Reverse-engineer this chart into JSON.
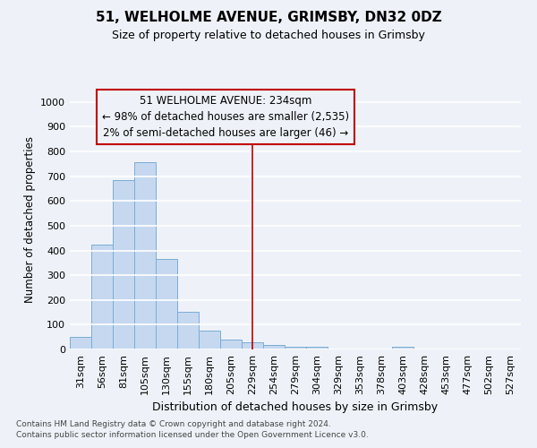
{
  "title1": "51, WELHOLME AVENUE, GRIMSBY, DN32 0DZ",
  "title2": "Size of property relative to detached houses in Grimsby",
  "xlabel": "Distribution of detached houses by size in Grimsby",
  "ylabel": "Number of detached properties",
  "categories": [
    "31sqm",
    "56sqm",
    "81sqm",
    "105sqm",
    "130sqm",
    "155sqm",
    "180sqm",
    "205sqm",
    "229sqm",
    "254sqm",
    "279sqm",
    "304sqm",
    "329sqm",
    "353sqm",
    "378sqm",
    "403sqm",
    "428sqm",
    "453sqm",
    "477sqm",
    "502sqm",
    "527sqm"
  ],
  "values": [
    52,
    425,
    685,
    757,
    365,
    153,
    75,
    40,
    30,
    18,
    12,
    10,
    0,
    0,
    0,
    10,
    0,
    0,
    0,
    0,
    0
  ],
  "bar_color": "#c5d8f0",
  "bar_edge_color": "#7aadd4",
  "vline_x_idx": 8,
  "vline_color": "#c00000",
  "annotation_line1": "51 WELHOLME AVENUE: 234sqm",
  "annotation_line2": "← 98% of detached houses are smaller (2,535)",
  "annotation_line3": "2% of semi-detached houses are larger (46) →",
  "annotation_box_color": "#c00000",
  "ylim": [
    0,
    1050
  ],
  "yticks": [
    0,
    100,
    200,
    300,
    400,
    500,
    600,
    700,
    800,
    900,
    1000
  ],
  "footer1": "Contains HM Land Registry data © Crown copyright and database right 2024.",
  "footer2": "Contains public sector information licensed under the Open Government Licence v3.0.",
  "bg_color": "#eef2f8",
  "plot_bg_color": "#eef2f8",
  "grid_color": "#ffffff",
  "title1_fontsize": 11,
  "title2_fontsize": 9,
  "xlabel_fontsize": 9,
  "ylabel_fontsize": 8.5,
  "tick_fontsize": 8,
  "annotation_fontsize": 8.5,
  "footer_fontsize": 6.5
}
